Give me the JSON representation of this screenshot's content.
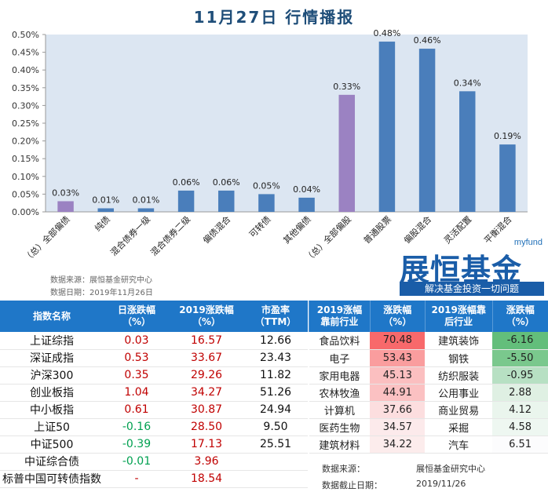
{
  "title": "11月27日  行情播报",
  "chart_data": {
    "type": "bar",
    "categories": [
      "（总）全部偏债",
      "纯债",
      "混合债券一级",
      "混合债券二级",
      "偏债混合",
      "可转债",
      "其他偏债",
      "（总）全部偏股",
      "普通股票",
      "偏股混合",
      "灵活配置",
      "平衡混合"
    ],
    "values": [
      0.03,
      0.01,
      0.01,
      0.06,
      0.06,
      0.05,
      0.04,
      0.33,
      0.48,
      0.46,
      0.34,
      0.19
    ],
    "labels": [
      "0.03%",
      "0.01%",
      "0.01%",
      "0.06%",
      "0.06%",
      "0.05%",
      "0.04%",
      "0.33%",
      "0.48%",
      "0.46%",
      "0.34%",
      "0.19%"
    ],
    "colors": [
      "#9b82c2",
      "#4a7ebb",
      "#4a7ebb",
      "#4a7ebb",
      "#4a7ebb",
      "#4a7ebb",
      "#4a7ebb",
      "#9b82c2",
      "#4a7ebb",
      "#4a7ebb",
      "#4a7ebb",
      "#4a7ebb"
    ],
    "yticks": [
      "0.00%",
      "0.05%",
      "0.10%",
      "0.15%",
      "0.20%",
      "0.25%",
      "0.30%",
      "0.35%",
      "0.40%",
      "0.45%",
      "0.50%"
    ],
    "ylim": [
      0,
      0.5
    ],
    "plot_bg": "#dce6f2",
    "grid": false
  },
  "source": {
    "line1": "数据来源：展恒基金研究中心",
    "line2": "数据日期：2019年11月26日"
  },
  "logo": {
    "small": "myfund",
    "big": "展恒基金",
    "slogan": "解决基金投资一切问题"
  },
  "left_table": {
    "headers": [
      "指数名称",
      "日涨跌幅（%）",
      "2019涨跌幅（%）",
      "市盈率（TTM）"
    ],
    "rows": [
      {
        "name": "上证综指",
        "day": "0.03",
        "ytd": "16.57",
        "pe": "12.66",
        "day_color": "red"
      },
      {
        "name": "深证成指",
        "day": "0.53",
        "ytd": "33.67",
        "pe": "23.43",
        "day_color": "red"
      },
      {
        "name": "沪深300",
        "day": "0.35",
        "ytd": "29.26",
        "pe": "11.82",
        "day_color": "red"
      },
      {
        "name": "创业板指",
        "day": "1.04",
        "ytd": "34.27",
        "pe": "51.26",
        "day_color": "red"
      },
      {
        "name": "中小板指",
        "day": "0.61",
        "ytd": "30.87",
        "pe": "24.94",
        "day_color": "red"
      },
      {
        "name": "上证50",
        "day": "-0.16",
        "ytd": "28.50",
        "pe": "9.50",
        "day_color": "green"
      },
      {
        "name": "中证500",
        "day": "-0.39",
        "ytd": "17.13",
        "pe": "25.51",
        "day_color": "green"
      },
      {
        "name": "中证综合债",
        "day": "-0.01",
        "ytd": "3.96",
        "pe": "",
        "day_color": "green"
      },
      {
        "name": "标普中国可转债指数",
        "day": "-",
        "ytd": "18.54",
        "pe": "",
        "day_color": "red"
      }
    ]
  },
  "right_table": {
    "headers": [
      "2019涨幅靠前行业",
      "涨跌幅（%）",
      "2019涨幅靠后行业",
      "涨跌幅（%）"
    ],
    "rows": [
      {
        "top": "食品饮料",
        "top_v": "70.48",
        "top_bg": "#f8696b",
        "bot": "建筑装饰",
        "bot_v": "-6.16",
        "bot_bg": "#63be7b"
      },
      {
        "top": "电子",
        "top_v": "53.43",
        "top_bg": "#fa9d9e",
        "bot": "钢铁",
        "bot_v": "-5.50",
        "bot_bg": "#7ac88d"
      },
      {
        "top": "家用电器",
        "top_v": "45.13",
        "top_bg": "#fbbfc0",
        "bot": "纺织服装",
        "bot_v": "-0.95",
        "bot_bg": "#b7e0c3"
      },
      {
        "top": "农林牧渔",
        "top_v": "44.91",
        "top_bg": "#fbc1c2",
        "bot": "公用事业",
        "bot_v": "2.88",
        "bot_bg": "#dff0e3"
      },
      {
        "top": "计算机",
        "top_v": "37.66",
        "top_bg": "#fcdedf",
        "bot": "商业贸易",
        "bot_v": "4.12",
        "bot_bg": "#eaf5ed"
      },
      {
        "top": "医药生物",
        "top_v": "34.57",
        "top_bg": "#fceaeb",
        "bot": "采掘",
        "bot_v": "4.58",
        "bot_bg": "#eef7f1"
      },
      {
        "top": "建筑材料",
        "top_v": "34.22",
        "top_bg": "#fcecec",
        "bot": "汽车",
        "bot_v": "6.51",
        "bot_bg": "#fcfcfd"
      }
    ],
    "note1_label": "数据来源：",
    "note1_value": "展恒基金研究中心",
    "note2_label": "数据截止日期：",
    "note2_value": "2019/11/26"
  }
}
